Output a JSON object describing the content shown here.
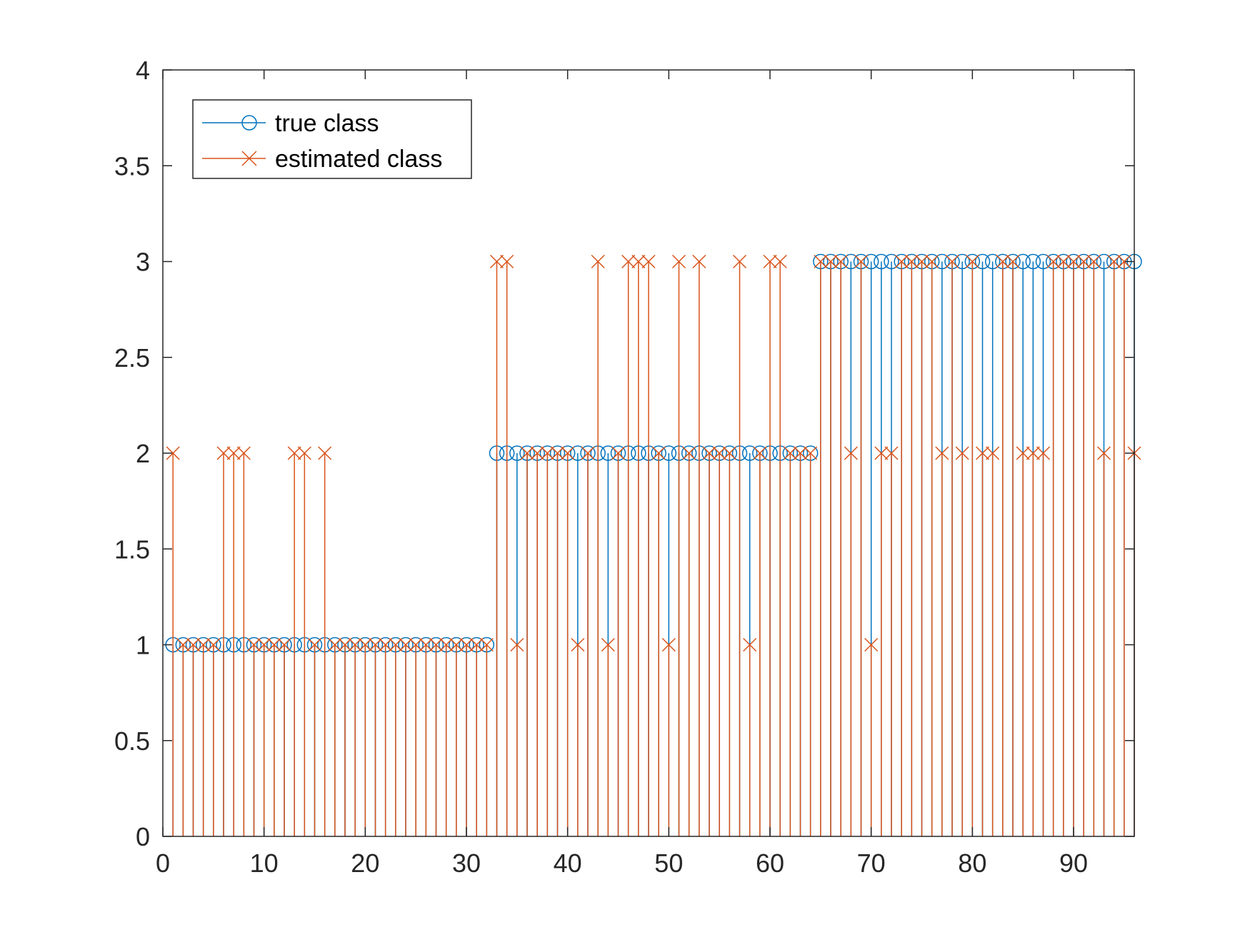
{
  "chart_data": {
    "type": "stem",
    "title": "",
    "xlabel": "",
    "ylabel": "",
    "xlim": [
      0,
      96
    ],
    "ylim": [
      0,
      4
    ],
    "xticks": [
      0,
      10,
      20,
      30,
      40,
      50,
      60,
      70,
      80,
      90
    ],
    "yticks": [
      0,
      0.5,
      1,
      1.5,
      2,
      2.5,
      3,
      3.5,
      4
    ],
    "xtick_labels": [
      "0",
      "10",
      "20",
      "30",
      "40",
      "50",
      "60",
      "70",
      "80",
      "90"
    ],
    "ytick_labels": [
      "0",
      "0.5",
      "1",
      "1.5",
      "2",
      "2.5",
      "3",
      "3.5",
      "4"
    ],
    "grid": false,
    "legend_position": "top-left",
    "x": [
      1,
      2,
      3,
      4,
      5,
      6,
      7,
      8,
      9,
      10,
      11,
      12,
      13,
      14,
      15,
      16,
      17,
      18,
      19,
      20,
      21,
      22,
      23,
      24,
      25,
      26,
      27,
      28,
      29,
      30,
      31,
      32,
      33,
      34,
      35,
      36,
      37,
      38,
      39,
      40,
      41,
      42,
      43,
      44,
      45,
      46,
      47,
      48,
      49,
      50,
      51,
      52,
      53,
      54,
      55,
      56,
      57,
      58,
      59,
      60,
      61,
      62,
      63,
      64,
      65,
      66,
      67,
      68,
      69,
      70,
      71,
      72,
      73,
      74,
      75,
      76,
      77,
      78,
      79,
      80,
      81,
      82,
      83,
      84,
      85,
      86,
      87,
      88,
      89,
      90,
      91,
      92,
      93,
      94,
      95,
      96
    ],
    "series": [
      {
        "name": "true class",
        "marker": "circle",
        "color": "#0072BD",
        "values": [
          1,
          1,
          1,
          1,
          1,
          1,
          1,
          1,
          1,
          1,
          1,
          1,
          1,
          1,
          1,
          1,
          1,
          1,
          1,
          1,
          1,
          1,
          1,
          1,
          1,
          1,
          1,
          1,
          1,
          1,
          1,
          1,
          2,
          2,
          2,
          2,
          2,
          2,
          2,
          2,
          2,
          2,
          2,
          2,
          2,
          2,
          2,
          2,
          2,
          2,
          2,
          2,
          2,
          2,
          2,
          2,
          2,
          2,
          2,
          2,
          2,
          2,
          2,
          2,
          3,
          3,
          3,
          3,
          3,
          3,
          3,
          3,
          3,
          3,
          3,
          3,
          3,
          3,
          3,
          3,
          3,
          3,
          3,
          3,
          3,
          3,
          3,
          3,
          3,
          3,
          3,
          3,
          3,
          3,
          3,
          3
        ]
      },
      {
        "name": "estimated class",
        "marker": "x",
        "color": "#D95319",
        "values": [
          2,
          1,
          1,
          1,
          1,
          2,
          2,
          2,
          1,
          1,
          1,
          1,
          2,
          2,
          1,
          2,
          1,
          1,
          1,
          1,
          1,
          1,
          1,
          1,
          1,
          1,
          1,
          1,
          1,
          1,
          1,
          1,
          3,
          3,
          1,
          2,
          2,
          2,
          2,
          2,
          1,
          2,
          3,
          1,
          2,
          3,
          3,
          3,
          2,
          1,
          3,
          2,
          3,
          2,
          2,
          2,
          3,
          1,
          2,
          3,
          3,
          2,
          2,
          2,
          3,
          3,
          3,
          2,
          3,
          1,
          2,
          2,
          3,
          3,
          3,
          3,
          2,
          3,
          2,
          3,
          2,
          2,
          3,
          3,
          2,
          2,
          2,
          3,
          3,
          3,
          3,
          3,
          2,
          3,
          3,
          2
        ]
      }
    ]
  }
}
